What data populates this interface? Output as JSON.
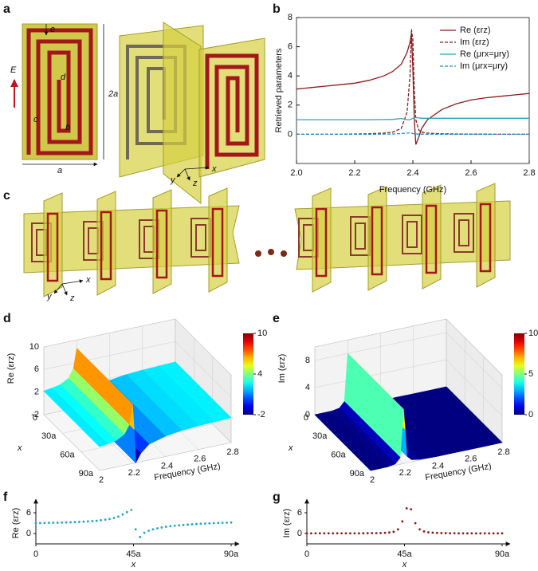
{
  "panel_labels": [
    "a",
    "b",
    "c",
    "d",
    "e",
    "f",
    "g"
  ],
  "diagram_a": {
    "dimension_labels": [
      "e",
      "E",
      "d",
      "2a",
      "c",
      "b",
      "a"
    ],
    "axis_labels": [
      "y",
      "z",
      "x"
    ]
  },
  "diagram_c": {
    "axis_labels": [
      "x",
      "y",
      "z"
    ]
  },
  "chart_data": [
    {
      "type": "line",
      "xlabel": "Frequency (GHz)",
      "ylabel": "Retrieved parameters",
      "x": [
        2.0,
        2.05,
        2.1,
        2.15,
        2.2,
        2.25,
        2.3,
        2.33,
        2.36,
        2.38,
        2.39,
        2.395,
        2.4,
        2.405,
        2.41,
        2.42,
        2.43,
        2.45,
        2.5,
        2.55,
        2.6,
        2.65,
        2.7,
        2.75,
        2.8
      ],
      "xlim": [
        2,
        2.8
      ],
      "xticks": [
        {
          "value": 2,
          "label": "2.0"
        },
        2.2,
        2.4,
        2.6,
        2.8
      ],
      "ylim": [
        -2,
        8
      ],
      "yticks": [
        0,
        2,
        4,
        6,
        8
      ],
      "legend": "upper right",
      "series": [
        {
          "name": "Re (εrz)",
          "color": "#8b1a1a",
          "dashed": false,
          "values": [
            3.1,
            3.2,
            3.3,
            3.4,
            3.5,
            3.7,
            4.0,
            4.3,
            4.8,
            5.6,
            6.3,
            6.9,
            4.5,
            1.0,
            -0.7,
            -0.2,
            0.4,
            1.0,
            1.7,
            2.1,
            2.35,
            2.5,
            2.6,
            2.7,
            2.8
          ]
        },
        {
          "name": "Im (εrz)",
          "color": "#8b1a1a",
          "dashed": true,
          "values": [
            0,
            0,
            0,
            0,
            0.02,
            0.04,
            0.08,
            0.15,
            0.4,
            1.5,
            4.0,
            7.2,
            6.5,
            3.0,
            1.0,
            0.3,
            0.15,
            0.08,
            0.04,
            0.02,
            0.01,
            0.01,
            0,
            0,
            0
          ]
        },
        {
          "name": "Re (μrx=μry)",
          "color": "#2aa3b8",
          "dashed": false,
          "values": [
            1,
            1,
            1,
            1,
            1,
            1,
            1.01,
            1.02,
            1.08,
            1.0,
            1.0,
            1.05,
            1.1,
            1.15,
            1.15,
            1.12,
            1.1,
            1.1,
            1.1,
            1.1,
            1.1,
            1.1,
            1.1,
            1.1,
            1.1
          ]
        },
        {
          "name": "Im (μrx=μry)",
          "color": "#1f8fd0",
          "dashed": true,
          "values": [
            0,
            0,
            0,
            0,
            0,
            0,
            0.01,
            0.02,
            0.05,
            0.08,
            0.1,
            0.08,
            0.05,
            0.03,
            0.02,
            0.01,
            0.01,
            0,
            0,
            0,
            0,
            0,
            0,
            0,
            0
          ]
        }
      ]
    },
    {
      "type": "surface",
      "zlabel": "Re (εrz)",
      "ylabel": "x",
      "xlabel": "Frequency (GHz)",
      "colormap": "jet",
      "x": [
        2,
        2.05,
        2.1,
        2.15,
        2.18,
        2.2,
        2.21,
        2.22,
        2.25,
        2.3,
        2.4,
        2.5,
        2.6,
        2.7,
        2.8
      ],
      "values": [
        2.2,
        2.4,
        2.7,
        3.5,
        5,
        8.5,
        4,
        -2,
        -0.5,
        0.8,
        1.6,
        2,
        2.2,
        2.3,
        2.4
      ],
      "xlim": [
        2,
        2.8
      ],
      "xticks": [
        2,
        2.2,
        2.4,
        2.6,
        2.8
      ],
      "ylim": [
        0,
        90
      ],
      "yticks": [
        0,
        {
          "value": 30,
          "label": "30a"
        },
        {
          "value": 60,
          "label": "60a"
        },
        {
          "value": 90,
          "label": "90a"
        }
      ],
      "zlim": [
        -2,
        10
      ],
      "zticks": [
        10,
        6,
        2,
        -2
      ],
      "colorbar": {
        "lim": [
          -2,
          10
        ],
        "ticks": [
          10,
          4,
          -2
        ]
      }
    },
    {
      "type": "surface",
      "zlabel": "Im (εrz)",
      "ylabel": "x",
      "xlabel": "Frequency (GHz)",
      "colormap": "jet",
      "x": [
        2,
        2.05,
        2.1,
        2.15,
        2.18,
        2.2,
        2.21,
        2.22,
        2.25,
        2.3,
        2.4,
        2.5,
        2.6,
        2.7,
        2.8
      ],
      "values": [
        0,
        0,
        0,
        0.2,
        1,
        8,
        5,
        1,
        0.3,
        0.1,
        0,
        0,
        0,
        0,
        0
      ],
      "xlim": [
        2,
        2.8
      ],
      "xticks": [
        2,
        2.2,
        2.4,
        2.6,
        2.8
      ],
      "ylim": [
        0,
        90
      ],
      "yticks": [
        0,
        {
          "value": 30,
          "label": "30a"
        },
        {
          "value": 60,
          "label": "60a"
        },
        {
          "value": 90,
          "label": "90a"
        }
      ],
      "zlim": [
        0,
        10
      ],
      "zticks": [
        8,
        4,
        0
      ],
      "colorbar": {
        "lim": [
          0,
          10
        ],
        "ticks": [
          10,
          5,
          0
        ]
      }
    },
    {
      "type": "scatter",
      "xlabel": "x",
      "ylabel": "Re (εrz)",
      "color": "#1fa3c8",
      "x": [
        0,
        2,
        4,
        6,
        8,
        10,
        12,
        14,
        16,
        18,
        20,
        22,
        24,
        26,
        28,
        30,
        32,
        34,
        36,
        38,
        40,
        42,
        44,
        46,
        48,
        50,
        52,
        54,
        56,
        58,
        60,
        62,
        64,
        66,
        68,
        70,
        72,
        74,
        76,
        78,
        80,
        82,
        84,
        86,
        88,
        90
      ],
      "values": [
        3.0,
        3.02,
        3.05,
        3.08,
        3.1,
        3.13,
        3.17,
        3.2,
        3.25,
        3.3,
        3.36,
        3.43,
        3.5,
        3.6,
        3.7,
        3.85,
        4.0,
        4.2,
        4.5,
        4.9,
        5.5,
        6.2,
        6.8,
        1.2,
        -1.0,
        0.2,
        0.8,
        1.2,
        1.5,
        1.75,
        1.95,
        2.1,
        2.25,
        2.37,
        2.48,
        2.58,
        2.67,
        2.75,
        2.82,
        2.88,
        2.94,
        3.0,
        3.05,
        3.1,
        3.15,
        3.2
      ],
      "xlim": [
        0,
        90
      ],
      "xticks": [
        0,
        {
          "value": 45,
          "label": "45a"
        },
        {
          "value": 90,
          "label": "90a"
        }
      ],
      "ylim": [
        -3,
        9
      ],
      "yticks": [
        0,
        6
      ]
    },
    {
      "type": "scatter",
      "xlabel": "x",
      "ylabel": "Im (εrz)",
      "color": "#8b1a1a",
      "x": [
        0,
        2,
        4,
        6,
        8,
        10,
        12,
        14,
        16,
        18,
        20,
        22,
        24,
        26,
        28,
        30,
        32,
        34,
        36,
        38,
        40,
        42,
        44,
        46,
        48,
        50,
        52,
        54,
        56,
        58,
        60,
        62,
        64,
        66,
        68,
        70,
        72,
        74,
        76,
        78,
        80,
        82,
        84,
        86,
        88,
        90
      ],
      "values": [
        0.05,
        0.05,
        0.05,
        0.05,
        0.05,
        0.05,
        0.05,
        0.05,
        0.05,
        0.05,
        0.05,
        0.05,
        0.06,
        0.07,
        0.08,
        0.1,
        0.12,
        0.15,
        0.2,
        0.3,
        0.5,
        1.2,
        3.5,
        7.3,
        7.0,
        3.0,
        1.2,
        0.6,
        0.35,
        0.25,
        0.18,
        0.14,
        0.11,
        0.09,
        0.08,
        0.06,
        0.06,
        0.06,
        0.06,
        0.06,
        0.06,
        0.06,
        0.06,
        0.06,
        0.06,
        0.06
      ],
      "xlim": [
        0,
        90
      ],
      "xticks": [
        0,
        {
          "value": 45,
          "label": "45a"
        },
        {
          "value": 90,
          "label": "90a"
        }
      ],
      "ylim": [
        -3,
        9
      ],
      "yticks": [
        0,
        6
      ]
    }
  ]
}
